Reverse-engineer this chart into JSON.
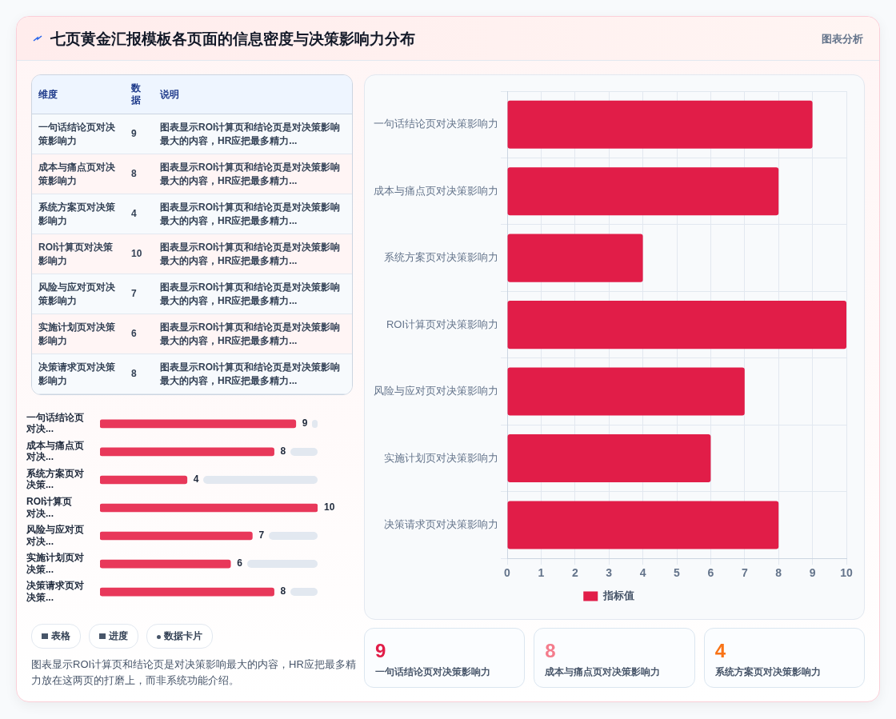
{
  "chart_data": [
    {
      "type": "other",
      "title": "七页黄金汇报模板各页面的信息密度与决策影响力分布",
      "subtitle": "图表分析"
    },
    {
      "type": "other",
      "data_labels": true,
      "categories": [
        "一句话结论页对决策影响力",
        "成本与痛点页对决策影响力",
        "系统方案页对决策影响力",
        "ROI计算页对决策影响力",
        "风险与应对页对决策影响力",
        "实施计划页对决策影响力",
        "决策请求页对决策影响力"
      ],
      "values": [
        9,
        8,
        4,
        10,
        7,
        6,
        8
      ],
      "annotations": [
        "维度",
        "数据",
        "说明",
        "图表显示ROI计算页和结论页是对决策影响最大的内容，HR应把最多精力...",
        "图表显示ROI计算页和结论页是对决策影响最大的内容，HR应把最多精力...",
        "图表显示ROI计算页和结论页是对决策影响最大的内容，HR应把最多精力...",
        "图表显示ROI计算页和结论页是对决策影响最大的内容，HR应把最多精力...",
        "图表显示ROI计算页和结论页是对决策影响最大的内容，HR应把最多精力...",
        "图表显示ROI计算页和结论页是对决策影响最大的内容，HR应把最多精力...",
        "图表显示ROI计算页和结论页是对决策影响最大的内容，HR应把最多精力..."
      ]
    },
    {
      "type": "bar",
      "orientation": "horizontal",
      "tick_labels": "y",
      "data_labels": true,
      "categories": [
        "一句话结论页对决...",
        "成本与痛点页对决...",
        "系统方案页对决策...",
        "ROI计算页对决...",
        "风险与应对页对决...",
        "实施计划页对决策...",
        "决策请求页对决策..."
      ],
      "values": [
        9,
        8,
        4,
        10,
        7,
        6,
        8
      ],
      "color": "#e8385a",
      "annotations": [
        "表格",
        "进度",
        "数据卡片",
        "图表显示ROI计算页和结论页是对决策影响最大的内容，HR应把最多精力放在这两页的打磨上，而非系统功能介绍。"
      ]
    },
    {
      "type": "bar",
      "orientation": "horizontal",
      "categories": [
        "一句话结论页对决策影响力",
        "成本与痛点页对决策影响力",
        "系统方案页对决策影响力",
        "ROI计算页对决策影响力",
        "风险与应对页对决策影响力",
        "实施计划页对决策影响力",
        "决策请求页对决策影响力"
      ],
      "series": [
        {
          "name": "指标值",
          "color": "#e11d48",
          "values": [
            9,
            8,
            4,
            10,
            7,
            6,
            8
          ]
        }
      ],
      "xlim": [
        0,
        10
      ],
      "xticks": [
        0,
        1,
        2,
        3,
        4,
        5,
        6,
        7,
        8,
        9,
        10
      ],
      "grid": true,
      "legend": "bottom"
    },
    {
      "type": "other",
      "categories": [
        "一句话结论页对决策影响力",
        "成本与痛点页对决策影响力",
        "系统方案页对决策影响力"
      ],
      "values": [
        9,
        8,
        4
      ],
      "data_labels": true
    }
  ]
}
